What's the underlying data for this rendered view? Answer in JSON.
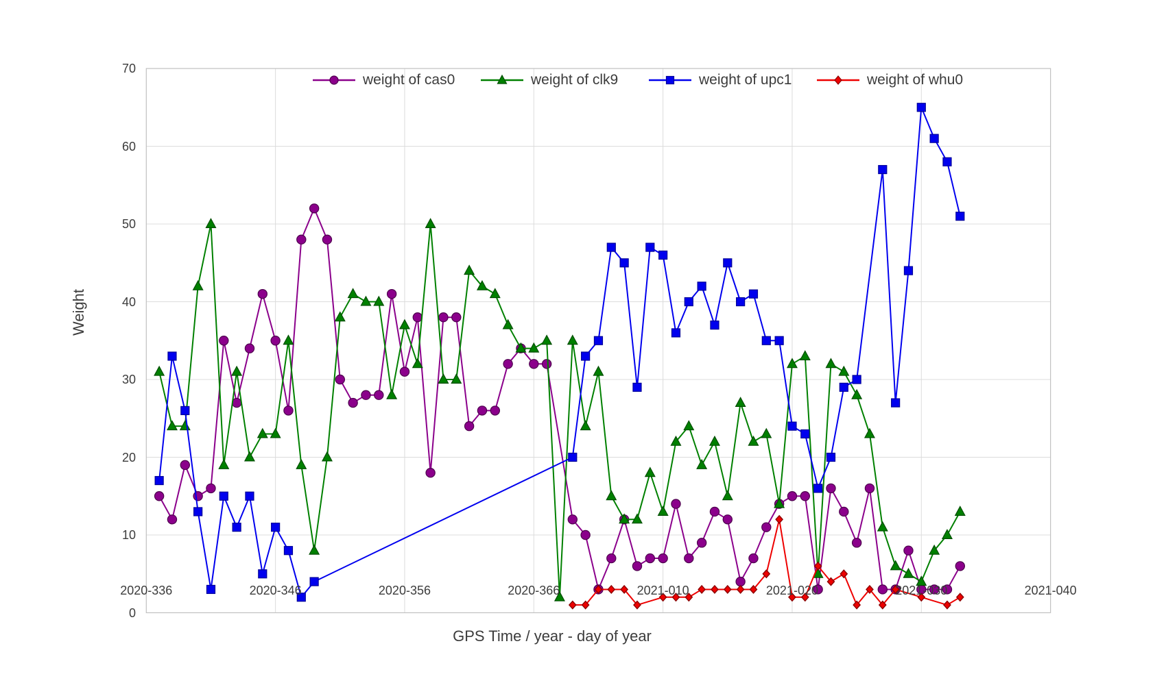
{
  "chart_data": {
    "type": "line",
    "title": "",
    "xlabel": "GPS Time / year - day of year",
    "ylabel": "Weight",
    "ylim": [
      0,
      70
    ],
    "grid": true,
    "legend_position": "top-inside-horizontal",
    "y_ticks": [
      0,
      10,
      20,
      30,
      40,
      50,
      60,
      70
    ],
    "x_ticks": [
      {
        "label": "2020-336",
        "day": "2020-336"
      },
      {
        "label": "2020-346",
        "day": "2020-346"
      },
      {
        "label": "2020-356",
        "day": "2020-356"
      },
      {
        "label": "2020-366",
        "day": "2020-366"
      },
      {
        "label": "2021-010",
        "day": "2021-010"
      },
      {
        "label": "2021-020",
        "day": "2021-020"
      },
      {
        "label": "2021-030",
        "day": "2021-030"
      },
      {
        "label": "2021-040",
        "day": "2021-040"
      }
    ],
    "series": [
      {
        "name": "weight of cas0",
        "color": "#8B008B",
        "edge_color": "#4d004d",
        "marker": "circle",
        "points": [
          [
            "2020-337",
            15
          ],
          [
            "2020-338",
            12
          ],
          [
            "2020-339",
            19
          ],
          [
            "2020-340",
            15
          ],
          [
            "2020-341",
            16
          ],
          [
            "2020-342",
            35
          ],
          [
            "2020-343",
            27
          ],
          [
            "2020-344",
            34
          ],
          [
            "2020-345",
            41
          ],
          [
            "2020-346",
            35
          ],
          [
            "2020-347",
            26
          ],
          [
            "2020-348",
            48
          ],
          [
            "2020-349",
            52
          ],
          [
            "2020-350",
            48
          ],
          [
            "2020-351",
            30
          ],
          [
            "2020-352",
            27
          ],
          [
            "2020-353",
            28
          ],
          [
            "2020-354",
            28
          ],
          [
            "2020-355",
            41
          ],
          [
            "2020-356",
            31
          ],
          [
            "2020-357",
            38
          ],
          [
            "2020-358",
            18
          ],
          [
            "2020-359",
            38
          ],
          [
            "2020-360",
            38
          ],
          [
            "2020-361",
            24
          ],
          [
            "2020-362",
            26
          ],
          [
            "2020-363",
            26
          ],
          [
            "2020-364",
            32
          ],
          [
            "2020-365",
            34
          ],
          [
            "2020-366",
            32
          ],
          [
            "2021-001",
            32
          ],
          [
            "2021-003",
            12
          ],
          [
            "2021-004",
            10
          ],
          [
            "2021-005",
            3
          ],
          [
            "2021-006",
            7
          ],
          [
            "2021-007",
            12
          ],
          [
            "2021-008",
            6
          ],
          [
            "2021-009",
            7
          ],
          [
            "2021-010",
            7
          ],
          [
            "2021-011",
            14
          ],
          [
            "2021-012",
            7
          ],
          [
            "2021-013",
            9
          ],
          [
            "2021-014",
            13
          ],
          [
            "2021-015",
            12
          ],
          [
            "2021-016",
            4
          ],
          [
            "2021-017",
            7
          ],
          [
            "2021-018",
            11
          ],
          [
            "2021-019",
            14
          ],
          [
            "2021-020",
            15
          ],
          [
            "2021-021",
            15
          ],
          [
            "2021-022",
            3
          ],
          [
            "2021-023",
            16
          ],
          [
            "2021-024",
            13
          ],
          [
            "2021-025",
            9
          ],
          [
            "2021-026",
            16
          ],
          [
            "2021-027",
            3
          ],
          [
            "2021-028",
            3
          ],
          [
            "2021-029",
            8
          ],
          [
            "2021-030",
            3
          ],
          [
            "2021-031",
            3
          ],
          [
            "2021-032",
            3
          ],
          [
            "2021-033",
            6
          ]
        ]
      },
      {
        "name": "weight of clk9",
        "color": "#008000",
        "edge_color": "#004d00",
        "marker": "triangle",
        "points": [
          [
            "2020-337",
            31
          ],
          [
            "2020-338",
            24
          ],
          [
            "2020-339",
            24
          ],
          [
            "2020-340",
            42
          ],
          [
            "2020-341",
            50
          ],
          [
            "2020-342",
            19
          ],
          [
            "2020-343",
            31
          ],
          [
            "2020-344",
            20
          ],
          [
            "2020-345",
            23
          ],
          [
            "2020-346",
            23
          ],
          [
            "2020-347",
            35
          ],
          [
            "2020-348",
            19
          ],
          [
            "2020-349",
            8
          ],
          [
            "2020-350",
            20
          ],
          [
            "2020-351",
            38
          ],
          [
            "2020-352",
            41
          ],
          [
            "2020-353",
            40
          ],
          [
            "2020-354",
            40
          ],
          [
            "2020-355",
            28
          ],
          [
            "2020-356",
            37
          ],
          [
            "2020-357",
            32
          ],
          [
            "2020-358",
            50
          ],
          [
            "2020-359",
            30
          ],
          [
            "2020-360",
            30
          ],
          [
            "2020-361",
            44
          ],
          [
            "2020-362",
            42
          ],
          [
            "2020-363",
            41
          ],
          [
            "2020-364",
            37
          ],
          [
            "2020-365",
            34
          ],
          [
            "2020-366",
            34
          ],
          [
            "2021-001",
            35
          ],
          [
            "2021-002",
            2
          ],
          [
            "2021-003",
            35
          ],
          [
            "2021-004",
            24
          ],
          [
            "2021-005",
            31
          ],
          [
            "2021-006",
            15
          ],
          [
            "2021-007",
            12
          ],
          [
            "2021-008",
            12
          ],
          [
            "2021-009",
            18
          ],
          [
            "2021-010",
            13
          ],
          [
            "2021-011",
            22
          ],
          [
            "2021-012",
            24
          ],
          [
            "2021-013",
            19
          ],
          [
            "2021-014",
            22
          ],
          [
            "2021-015",
            15
          ],
          [
            "2021-016",
            27
          ],
          [
            "2021-017",
            22
          ],
          [
            "2021-018",
            23
          ],
          [
            "2021-019",
            14
          ],
          [
            "2021-020",
            32
          ],
          [
            "2021-021",
            33
          ],
          [
            "2021-022",
            5
          ],
          [
            "2021-023",
            32
          ],
          [
            "2021-024",
            31
          ],
          [
            "2021-025",
            28
          ],
          [
            "2021-026",
            23
          ],
          [
            "2021-027",
            11
          ],
          [
            "2021-028",
            6
          ],
          [
            "2021-029",
            5
          ],
          [
            "2021-030",
            4
          ],
          [
            "2021-031",
            8
          ],
          [
            "2021-032",
            10
          ],
          [
            "2021-033",
            13
          ]
        ]
      },
      {
        "name": "weight of upc1",
        "color": "#0000EE",
        "edge_color": "#000099",
        "marker": "square",
        "points": [
          [
            "2020-337",
            17
          ],
          [
            "2020-338",
            33
          ],
          [
            "2020-339",
            26
          ],
          [
            "2020-340",
            13
          ],
          [
            "2020-341",
            3
          ],
          [
            "2020-342",
            15
          ],
          [
            "2020-343",
            11
          ],
          [
            "2020-344",
            15
          ],
          [
            "2020-345",
            5
          ],
          [
            "2020-346",
            11
          ],
          [
            "2020-347",
            8
          ],
          [
            "2020-348",
            2
          ],
          [
            "2020-349",
            4
          ],
          [
            "2021-003",
            20
          ],
          [
            "2021-004",
            33
          ],
          [
            "2021-005",
            35
          ],
          [
            "2021-006",
            47
          ],
          [
            "2021-007",
            45
          ],
          [
            "2021-008",
            29
          ],
          [
            "2021-009",
            47
          ],
          [
            "2021-010",
            46
          ],
          [
            "2021-011",
            36
          ],
          [
            "2021-012",
            40
          ],
          [
            "2021-013",
            42
          ],
          [
            "2021-014",
            37
          ],
          [
            "2021-015",
            45
          ],
          [
            "2021-016",
            40
          ],
          [
            "2021-017",
            41
          ],
          [
            "2021-018",
            35
          ],
          [
            "2021-019",
            35
          ],
          [
            "2021-020",
            24
          ],
          [
            "2021-021",
            23
          ],
          [
            "2021-022",
            16
          ],
          [
            "2021-023",
            20
          ],
          [
            "2021-024",
            29
          ],
          [
            "2021-025",
            30
          ],
          [
            "2021-027",
            57
          ],
          [
            "2021-028",
            27
          ],
          [
            "2021-029",
            44
          ],
          [
            "2021-030",
            65
          ],
          [
            "2021-031",
            61
          ],
          [
            "2021-032",
            58
          ],
          [
            "2021-033",
            51
          ]
        ]
      },
      {
        "name": "weight of whu0",
        "color": "#EE0000",
        "edge_color": "#8B0000",
        "marker": "diamond",
        "points": [
          [
            "2021-003",
            1
          ],
          [
            "2021-004",
            1
          ],
          [
            "2021-005",
            3
          ],
          [
            "2021-006",
            3
          ],
          [
            "2021-007",
            3
          ],
          [
            "2021-008",
            1
          ],
          [
            "2021-010",
            2
          ],
          [
            "2021-011",
            2
          ],
          [
            "2021-012",
            2
          ],
          [
            "2021-013",
            3
          ],
          [
            "2021-014",
            3
          ],
          [
            "2021-015",
            3
          ],
          [
            "2021-016",
            3
          ],
          [
            "2021-017",
            3
          ],
          [
            "2021-018",
            5
          ],
          [
            "2021-019",
            12
          ],
          [
            "2021-020",
            2
          ],
          [
            "2021-021",
            2
          ],
          [
            "2021-022",
            6
          ],
          [
            "2021-023",
            4
          ],
          [
            "2021-024",
            5
          ],
          [
            "2021-025",
            1
          ],
          [
            "2021-026",
            3
          ],
          [
            "2021-027",
            1
          ],
          [
            "2021-028",
            3
          ],
          [
            "2021-030",
            2
          ],
          [
            "2021-032",
            1
          ],
          [
            "2021-033",
            2
          ]
        ]
      }
    ]
  },
  "style": {
    "grid_color": "#dcdcdc",
    "spine_color": "#c0c0c0",
    "text_color": "#3c3c3c"
  }
}
